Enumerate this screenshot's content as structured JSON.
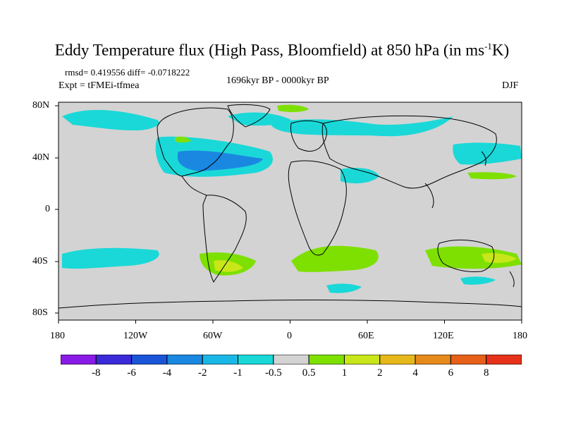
{
  "title": {
    "main": "Eddy Temperature flux (High Pass, Bloomfield) at 850 hPa (in ms",
    "sup": "-1",
    "end": "K)"
  },
  "stats": "rmsd= 0.419556 diff= -0.0718222",
  "expt": "Expt = tFMEi-tfmea",
  "period": "1696kyr BP - 0000kyr BP",
  "season": "DJF",
  "axes": {
    "lat_labels": [
      "80N",
      "40N",
      "0",
      "40S",
      "80S"
    ],
    "lon_labels": [
      "180",
      "120W",
      "60W",
      "0",
      "60E",
      "120E",
      "180"
    ],
    "lon_range": [
      -180,
      180
    ],
    "lat_range": [
      -90,
      90
    ]
  },
  "colorbar": {
    "labels": [
      "-8",
      "-6",
      "-4",
      "-2",
      "-1",
      "-0.5",
      "0.5",
      "1",
      "2",
      "4",
      "6",
      "8"
    ],
    "colors": [
      "#8a1ae6",
      "#3a2ad8",
      "#1a55d8",
      "#1a88e0",
      "#1ab8e6",
      "#1ad8d8",
      "#d3d3d3",
      "#7ee000",
      "#c8e61a",
      "#e6b81a",
      "#e68a1a",
      "#e6601a",
      "#e6321a"
    ]
  },
  "colors": {
    "ocean_fill": "#d3d3d3",
    "neg_weak": "#1ad8d8",
    "neg_mid": "#1ab8e6",
    "neg_strong": "#1a88e0",
    "pos_weak": "#7ee000",
    "pos_mid": "#c8e61a"
  }
}
